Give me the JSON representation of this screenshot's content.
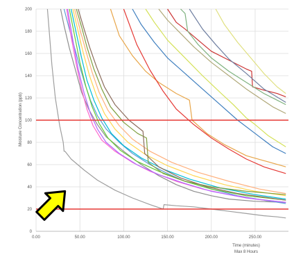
{
  "chart_data": {
    "type": "line",
    "title": "",
    "ylabel": "Moisture Concentration (ppb)",
    "xlabel": "Time (minutes)",
    "xlabel_sub": "Max 8 Hours",
    "xlim": [
      0,
      288
    ],
    "ylim": [
      0,
      200
    ],
    "xticks": [
      0,
      50,
      100,
      150,
      200,
      250
    ],
    "xtick_labels": [
      "0.00",
      "50.00",
      "100.00",
      "150.00",
      "200.00",
      "250.00"
    ],
    "yticks": [
      0,
      20,
      40,
      60,
      80,
      100,
      120,
      140,
      160,
      180,
      200
    ],
    "ytick_labels": [
      "0",
      "20",
      "40",
      "60",
      "80",
      "100",
      "120",
      "140",
      "160",
      "180",
      "200"
    ],
    "grid": true,
    "reference_lines": [
      {
        "axis": "y",
        "value": 100,
        "color": "#e53935"
      },
      {
        "axis": "y",
        "value": 20,
        "color": "#e53935"
      }
    ],
    "annotation": {
      "kind": "arrow",
      "color": "#ffff00",
      "outline": "#000000",
      "points_to": [
        33,
        36
      ]
    },
    "series": [
      {
        "color": "#9e9e9e",
        "x": [
          13,
          15,
          18,
          22,
          27,
          31,
          32,
          33,
          40,
          55,
          70,
          90,
          110,
          130,
          145,
          146,
          160,
          180,
          200,
          220,
          240,
          260,
          275,
          285
        ],
        "y": [
          200,
          180,
          150,
          120,
          95,
          80,
          72,
          72,
          65,
          55,
          46,
          37,
          30,
          24,
          20,
          24,
          23,
          22,
          20,
          18,
          16,
          14,
          13,
          12
        ]
      },
      {
        "color": "#8d8d8d",
        "x": [
          28,
          32,
          38,
          45,
          52,
          60,
          70,
          80,
          100,
          120,
          140,
          160,
          180,
          200,
          220,
          250,
          285
        ],
        "y": [
          200,
          185,
          165,
          145,
          125,
          110,
          96,
          85,
          72,
          60,
          50,
          42,
          36,
          32,
          29,
          27,
          26
        ]
      },
      {
        "color": "#5b9bd5",
        "x": [
          32,
          38,
          44,
          50,
          56,
          62,
          70,
          80,
          95,
          110,
          130,
          150,
          170,
          200,
          230,
          260,
          285
        ],
        "y": [
          200,
          182,
          165,
          148,
          132,
          118,
          104,
          92,
          80,
          70,
          60,
          52,
          45,
          38,
          32,
          28,
          25
        ]
      },
      {
        "color": "#ff66cc",
        "x": [
          35,
          40,
          46,
          52,
          58,
          65,
          75,
          90,
          110,
          130,
          160,
          190,
          220,
          250,
          285
        ],
        "y": [
          200,
          175,
          150,
          128,
          110,
          95,
          82,
          72,
          62,
          54,
          45,
          38,
          33,
          29,
          26
        ]
      },
      {
        "color": "#b266ff",
        "x": [
          36,
          42,
          48,
          55,
          62,
          70,
          80,
          95,
          115,
          140,
          170,
          200,
          240,
          285
        ],
        "y": [
          200,
          172,
          146,
          124,
          106,
          92,
          80,
          70,
          60,
          51,
          43,
          36,
          30,
          26
        ]
      },
      {
        "color": "#66cc33",
        "x": [
          38,
          44,
          50,
          57,
          64,
          72,
          82,
          96,
          115,
          140,
          170,
          200,
          240,
          285
        ],
        "y": [
          200,
          176,
          152,
          130,
          112,
          97,
          84,
          73,
          63,
          54,
          45,
          38,
          32,
          28
        ]
      },
      {
        "color": "#00bcd4",
        "x": [
          40,
          46,
          52,
          58,
          66,
          75,
          86,
          100,
          120,
          145,
          175,
          210,
          250,
          285
        ],
        "y": [
          200,
          178,
          156,
          136,
          118,
          102,
          88,
          77,
          66,
          56,
          47,
          39,
          33,
          29
        ]
      },
      {
        "color": "#ffd54f",
        "x": [
          42,
          48,
          54,
          61,
          69,
          78,
          90,
          105,
          125,
          150,
          180,
          215,
          250,
          285
        ],
        "y": [
          200,
          180,
          160,
          140,
          122,
          106,
          92,
          80,
          69,
          59,
          50,
          42,
          36,
          32
        ]
      },
      {
        "color": "#ffb07c",
        "x": [
          44,
          50,
          57,
          64,
          72,
          82,
          95,
          110,
          130,
          155,
          185,
          220,
          255,
          285
        ],
        "y": [
          200,
          182,
          162,
          143,
          125,
          109,
          95,
          83,
          72,
          62,
          53,
          45,
          38,
          34
        ]
      },
      {
        "color": "#7f9f3f",
        "x": [
          46,
          52,
          58,
          66,
          75,
          85,
          100,
          116,
          126,
          128,
          145,
          170,
          200,
          240,
          285
        ],
        "y": [
          200,
          184,
          166,
          146,
          128,
          112,
          98,
          88,
          84,
          62,
          52,
          45,
          40,
          36,
          33
        ]
      },
      {
        "color": "#8b6c5c",
        "x": [
          48,
          54,
          61,
          69,
          78,
          90,
          106,
          122,
          124,
          140,
          165,
          195,
          230,
          285
        ],
        "y": [
          200,
          184,
          166,
          148,
          130,
          114,
          100,
          90,
          70,
          58,
          48,
          40,
          34,
          28
        ]
      },
      {
        "color": "#e8a64a",
        "x": [
          85,
          95,
          110,
          125,
          140,
          160,
          175,
          178,
          195,
          215,
          240,
          285
        ],
        "y": [
          200,
          176,
          158,
          144,
          134,
          124,
          118,
          100,
          88,
          78,
          68,
          58
        ]
      },
      {
        "color": "#e53935",
        "x": [
          100,
          115,
          130,
          145,
          160,
          180,
          200,
          220,
          240,
          260,
          285
        ],
        "y": [
          200,
          168,
          145,
          126,
          110,
          96,
          84,
          74,
          65,
          58,
          52
        ]
      },
      {
        "color": "#3f7fbf",
        "x": [
          110,
          120,
          135,
          150,
          170,
          190,
          210,
          230,
          250,
          270,
          285
        ],
        "y": [
          200,
          186,
          170,
          156,
          142,
          128,
          114,
          100,
          88,
          76,
          70
        ]
      },
      {
        "color": "#d4e157",
        "x": [
          125,
          135,
          150,
          170,
          190,
          210,
          225,
          240,
          250,
          265,
          285
        ],
        "y": [
          200,
          188,
          172,
          156,
          140,
          125,
          114,
          102,
          96,
          86,
          76
        ]
      },
      {
        "color": "#b0a878",
        "x": [
          140,
          150,
          165,
          180,
          200,
          220,
          240,
          255,
          270,
          285
        ],
        "y": [
          200,
          190,
          178,
          166,
          152,
          140,
          128,
          120,
          112,
          106
        ]
      },
      {
        "color": "#cc3333",
        "x": [
          150,
          160,
          170,
          185,
          200,
          220,
          240,
          246,
          247,
          260,
          275,
          285
        ],
        "y": [
          200,
          188,
          182,
          172,
          162,
          154,
          146,
          144,
          130,
          127,
          124,
          121
        ]
      },
      {
        "color": "#7fb27f",
        "x": [
          165,
          170,
          173,
          185,
          200,
          220,
          240,
          260,
          275,
          285
        ],
        "y": [
          200,
          196,
          180,
          168,
          156,
          144,
          134,
          124,
          118,
          114
        ]
      },
      {
        "color": "#6f7fa0",
        "x": [
          175,
          190,
          205,
          220,
          240,
          260,
          285
        ],
        "y": [
          200,
          182,
          168,
          155,
          142,
          128,
          116
        ]
      },
      {
        "color": "#e0e080",
        "x": [
          205,
          215,
          230,
          245,
          260,
          275,
          285
        ],
        "y": [
          200,
          186,
          170,
          156,
          142,
          130,
          124
        ]
      }
    ]
  }
}
